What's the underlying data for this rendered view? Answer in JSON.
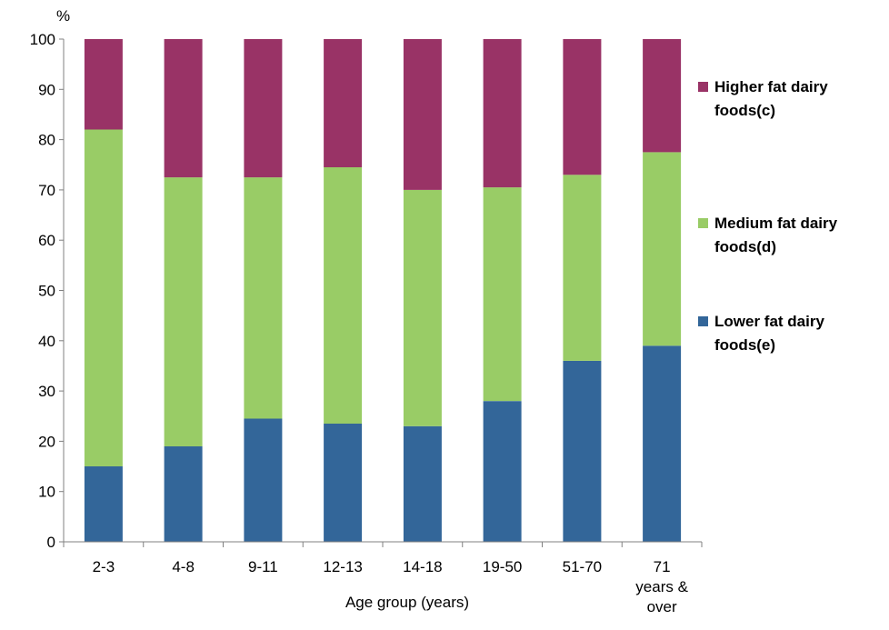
{
  "chart_data": {
    "type": "bar",
    "stacked": true,
    "title": "",
    "ylabel": "%",
    "xlabel": "Age group (years)",
    "ylim": [
      0,
      100
    ],
    "yticks": [
      0,
      10,
      20,
      30,
      40,
      50,
      60,
      70,
      80,
      90,
      100
    ],
    "grid": false,
    "legend_position": "right",
    "categories": [
      "2-3",
      "4-8",
      "9-11",
      "12-13",
      "14-18",
      "19-50",
      "51-70",
      "71 years & over"
    ],
    "category_label_lines": [
      [
        "2-3"
      ],
      [
        "4-8"
      ],
      [
        "9-11"
      ],
      [
        "12-13"
      ],
      [
        "14-18"
      ],
      [
        "19-50"
      ],
      [
        "51-70"
      ],
      [
        "71",
        "years &",
        "over"
      ]
    ],
    "series": [
      {
        "name": "Lower fat dairy foods(e)",
        "name_lines": [
          "Lower fat dairy",
          "foods(e)"
        ],
        "color": "#336699",
        "values": [
          15,
          19,
          24.5,
          23.5,
          23,
          28,
          36,
          39
        ]
      },
      {
        "name": "Medium fat dairy foods(d)",
        "name_lines": [
          "Medium fat dairy",
          "foods(d)"
        ],
        "color": "#99cc66",
        "values": [
          67,
          53.5,
          48,
          51,
          47,
          42.5,
          37,
          38.5
        ]
      },
      {
        "name": "Higher fat dairy foods(c)",
        "name_lines": [
          "Higher fat dairy",
          "foods(c)"
        ],
        "color": "#993366",
        "values": [
          18,
          27.5,
          27.5,
          25.5,
          30,
          29.5,
          27,
          22.5
        ]
      }
    ]
  }
}
